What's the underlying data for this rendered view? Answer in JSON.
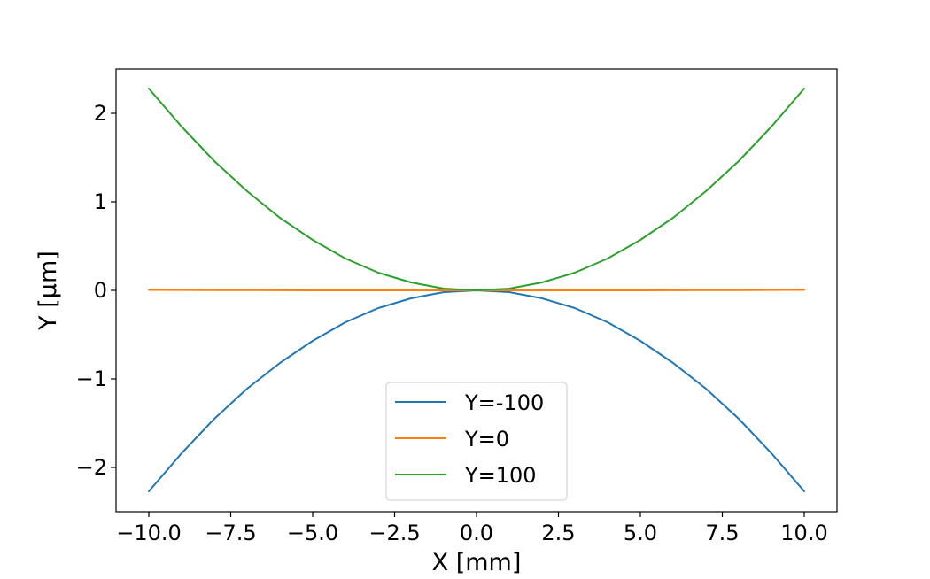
{
  "chart_data": {
    "type": "line",
    "title": "",
    "xlabel": "X [mm]",
    "ylabel": "Y [µm]",
    "xlim": [
      -11,
      11
    ],
    "ylim": [
      -2.5,
      2.5
    ],
    "xticks": [
      -10.0,
      -7.5,
      -5.0,
      -2.5,
      0.0,
      2.5,
      5.0,
      7.5,
      10.0
    ],
    "xtick_labels": [
      "−10.0",
      "−7.5",
      "−5.0",
      "−2.5",
      "0.0",
      "2.5",
      "5.0",
      "7.5",
      "10.0"
    ],
    "yticks": [
      -2,
      -1,
      0,
      1,
      2
    ],
    "ytick_labels": [
      "−2",
      "−1",
      "0",
      "1",
      "2"
    ],
    "grid": false,
    "legend_position": "bottom-center",
    "x": [
      -10,
      -9,
      -8,
      -7,
      -6,
      -5,
      -4,
      -3,
      -2,
      -1,
      0,
      1,
      2,
      3,
      4,
      5,
      6,
      7,
      8,
      9,
      10
    ],
    "series": [
      {
        "name": "Y=-100",
        "color": "#1f77b4",
        "values": [
          -2.27,
          -1.84,
          -1.45,
          -1.11,
          -0.82,
          -0.57,
          -0.36,
          -0.2,
          -0.09,
          -0.02,
          0.0,
          -0.02,
          -0.09,
          -0.2,
          -0.36,
          -0.57,
          -0.82,
          -1.11,
          -1.45,
          -1.84,
          -2.27
        ]
      },
      {
        "name": "Y=0",
        "color": "#ff7f0e",
        "values": [
          0.005,
          0.004,
          0.003,
          0.002,
          0.001,
          0.0,
          0.0,
          0.0,
          0.0,
          0.0,
          0.0,
          0.0,
          0.0,
          0.0,
          0.0,
          0.0,
          0.001,
          0.002,
          0.003,
          0.004,
          0.005
        ]
      },
      {
        "name": "Y=100",
        "color": "#2ca02c",
        "values": [
          2.28,
          1.85,
          1.46,
          1.12,
          0.82,
          0.57,
          0.36,
          0.2,
          0.09,
          0.02,
          0.0,
          0.02,
          0.09,
          0.2,
          0.36,
          0.57,
          0.82,
          1.12,
          1.46,
          1.85,
          2.28
        ]
      }
    ]
  }
}
